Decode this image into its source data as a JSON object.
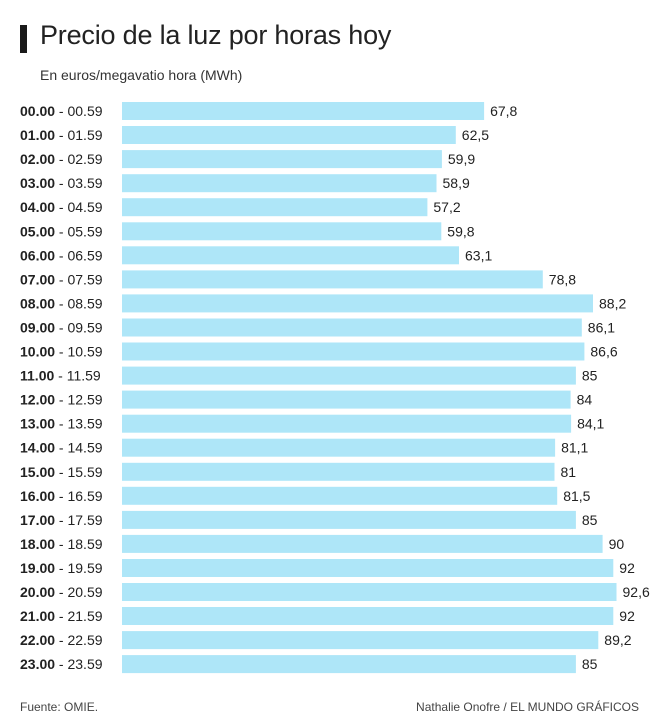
{
  "header": {
    "title": "Precio de la luz por horas hoy",
    "subtitle": "En euros/megavatio hora (MWh)"
  },
  "footer": {
    "source": "Fuente: OMIE.",
    "credit": "Nathalie Onofre / EL MUNDO GRÁFICOS"
  },
  "chart_data": {
    "type": "bar",
    "orientation": "horizontal",
    "categories": [
      "00.00 - 00.59",
      "01.00 - 01.59",
      "02.00 - 02.59",
      "03.00 - 03.59",
      "04.00 - 04.59",
      "05.00 - 05.59",
      "06.00 - 06.59",
      "07.00 - 07.59",
      "08.00 - 08.59",
      "09.00 - 09.59",
      "10.00 - 10.59",
      "11.00 - 11.59",
      "12.00 - 12.59",
      "13.00 - 13.59",
      "14.00 - 14.59",
      "15.00 - 15.59",
      "16.00 - 16.59",
      "17.00 - 17.59",
      "18.00 - 18.59",
      "19.00 - 19.59",
      "20.00 - 20.59",
      "21.00 - 21.59",
      "22.00 - 22.59",
      "23.00 - 23.59"
    ],
    "values": [
      67.8,
      62.5,
      59.9,
      58.9,
      57.2,
      59.8,
      63.1,
      78.8,
      88.2,
      86.1,
      86.6,
      85,
      84,
      84.1,
      81.1,
      81,
      81.5,
      85,
      90,
      92,
      92.6,
      92,
      89.2,
      85
    ],
    "value_labels": [
      "67,8",
      "62,5",
      "59,9",
      "58,9",
      "57,2",
      "59,8",
      "63,1",
      "78,8",
      "88,2",
      "86,1",
      "86,6",
      "85",
      "84",
      "84,1",
      "81,1",
      "81",
      "81,5",
      "85",
      "90",
      "92",
      "92,6",
      "92",
      "89,2",
      "85"
    ],
    "unit": "€/MWh",
    "bar_color": "#aee6f8",
    "grid": false,
    "legend": "none"
  }
}
